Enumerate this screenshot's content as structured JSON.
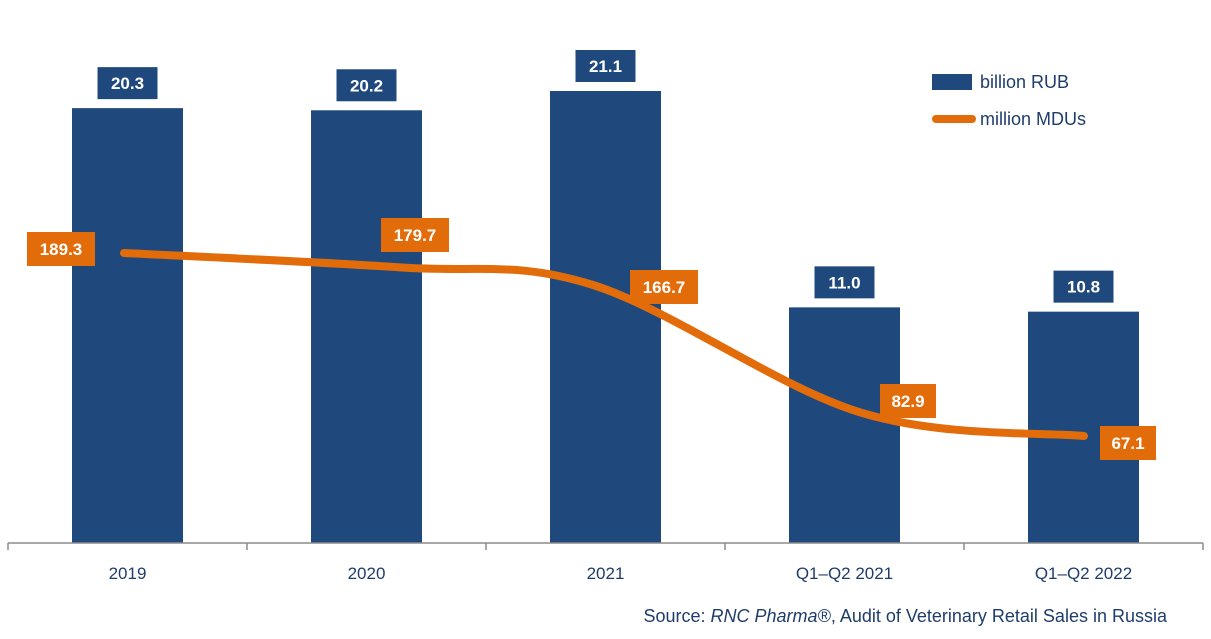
{
  "chart_data": {
    "type": "bar",
    "categories": [
      "2019",
      "2020",
      "2021",
      "Q1–Q2 2021",
      "Q1–Q2 2022"
    ],
    "series": [
      {
        "name": "billion RUB",
        "type": "bar",
        "values": [
          20.3,
          20.2,
          21.1,
          11.0,
          10.8
        ],
        "color": "#1f497d"
      },
      {
        "name": "million MDUs",
        "type": "line",
        "values": [
          189.3,
          179.7,
          166.7,
          82.9,
          67.1
        ],
        "color": "#e36c0a"
      }
    ],
    "value_labels": {
      "bars": [
        "20.3",
        "20.2",
        "21.1",
        "11.0",
        "10.8"
      ],
      "line": [
        "189.3",
        "179.7",
        "166.7",
        "82.9",
        "67.1"
      ]
    },
    "legend_position": "top-right",
    "grid": false
  },
  "source": {
    "prefix": "Source: ",
    "brand": "RNC Pharma®",
    "suffix": ", Audit of Veterinary Retail Sales in Russia"
  }
}
